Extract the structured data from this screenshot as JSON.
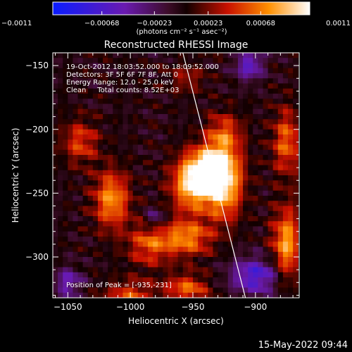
{
  "chart_data": {
    "type": "heatmap",
    "title": "Reconstructed RHESSI Image",
    "xlabel": "Heliocentric X (arcsec)",
    "ylabel": "Heliocentric Y (arcsec)",
    "xlim": [
      -1062,
      -865
    ],
    "ylim": [
      -332,
      -140
    ],
    "xticks": [
      -1050,
      -1000,
      -950,
      -900
    ],
    "xtick_labels": [
      "−1050",
      "−1000",
      "−950",
      "−900"
    ],
    "yticks": [
      -150,
      -200,
      -250,
      -300
    ],
    "ytick_labels": [
      "−150",
      "−200",
      "−250",
      "−300"
    ],
    "colorbar": {
      "range": [
        -0.0011,
        0.0011
      ],
      "ticks": [
        -0.0011,
        -0.00068,
        -0.00023,
        0.00023,
        0.00068,
        0.0011
      ],
      "tick_labels": [
        "−0.0011",
        "−0.00068",
        "−0.00023",
        "0.00023",
        "0.00068",
        "0.0011"
      ],
      "unit_label": "(photons cm⁻² s⁻¹ asec⁻²)"
    },
    "annotations": {
      "time_range": "19-Oct-2012 18:03:52.000 to 18:09:52.000",
      "detectors": "Detectors: 3F 5F 6F 7F 8F, Att 0",
      "energy": "Energy Range: 12.0 - 25.0 keV",
      "method": "Clean     Total counts: 8.52E+03",
      "peak": "Position of Peak = [-935,-231]"
    },
    "peak": {
      "x": -935,
      "y": -231
    },
    "limb_line": [
      [
        -958,
        -140
      ],
      [
        -908,
        -332
      ]
    ],
    "sources": [
      {
        "x": -935,
        "y": -231,
        "peak": 0.0011,
        "sx": 14,
        "sy": 12
      },
      {
        "x": -950,
        "y": -245,
        "peak": 0.00085,
        "sx": 12,
        "sy": 14
      },
      {
        "x": -925,
        "y": -250,
        "peak": 0.00075,
        "sx": 10,
        "sy": 16
      },
      {
        "x": -925,
        "y": -205,
        "peak": 0.0006,
        "sx": 10,
        "sy": 12
      },
      {
        "x": -955,
        "y": -285,
        "peak": 0.0007,
        "sx": 14,
        "sy": 10
      },
      {
        "x": -1015,
        "y": -255,
        "peak": 0.00075,
        "sx": 10,
        "sy": 16
      },
      {
        "x": -985,
        "y": -290,
        "peak": 0.00055,
        "sx": 12,
        "sy": 12
      },
      {
        "x": -1040,
        "y": -210,
        "peak": 0.0005,
        "sx": 10,
        "sy": 12
      },
      {
        "x": -875,
        "y": -210,
        "peak": 0.0006,
        "sx": 8,
        "sy": 18
      },
      {
        "x": -875,
        "y": -290,
        "peak": 0.0008,
        "sx": 8,
        "sy": 20
      },
      {
        "x": -1000,
        "y": -330,
        "peak": 0.0005,
        "sx": 14,
        "sy": 8
      },
      {
        "x": -955,
        "y": -325,
        "peak": 0.0006,
        "sx": 12,
        "sy": 8
      },
      {
        "x": -955,
        "y": -160,
        "peak": 0.0003,
        "sx": 10,
        "sy": 8
      },
      {
        "x": -905,
        "y": -150,
        "peak": -0.0006,
        "sx": 8,
        "sy": 8
      },
      {
        "x": -1050,
        "y": -320,
        "peak": -0.0005,
        "sx": 8,
        "sy": 8
      },
      {
        "x": -900,
        "y": -315,
        "peak": -0.0007,
        "sx": 14,
        "sy": 10
      },
      {
        "x": -980,
        "y": -270,
        "peak": -0.0004,
        "sx": 6,
        "sy": 6
      }
    ],
    "grid": false
  },
  "footer": {
    "timestamp": "15-May-2022 09:44"
  }
}
